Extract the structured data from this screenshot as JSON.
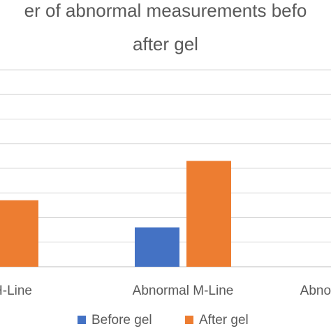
{
  "chart_data": {
    "type": "bar",
    "title_lines": [
      "er of abnormal measurements befo",
      "after gel"
    ],
    "categories": [
      "H-Line",
      "Abnormal M-Line",
      "Abnor"
    ],
    "series": [
      {
        "name": "Before gel",
        "color": "#4472C4",
        "values": [
          null,
          1.6,
          null
        ]
      },
      {
        "name": "After gel",
        "color": "#ED7D31",
        "values": [
          2.7,
          4.3,
          null
        ]
      }
    ],
    "ylim": [
      0,
      8
    ],
    "grid": true,
    "legend_position": "bottom"
  }
}
